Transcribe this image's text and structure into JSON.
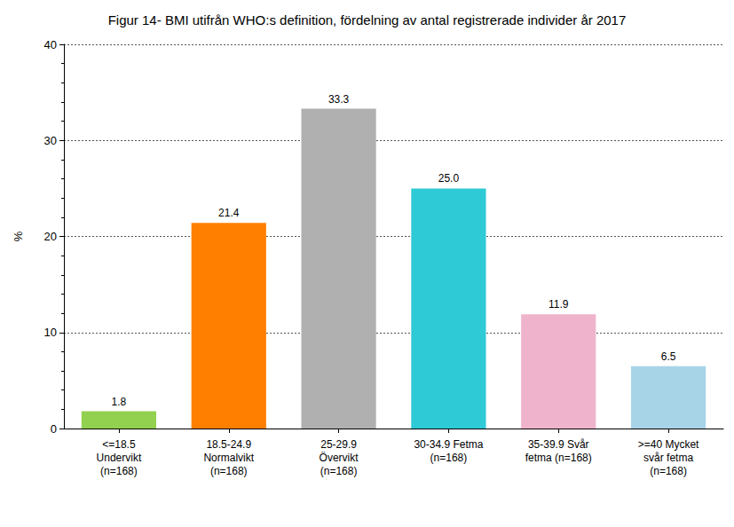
{
  "chart_data": {
    "type": "bar",
    "title": "Figur 14- BMI utifrån WHO:s definition, fördelning av antal registrerade individer år 2017",
    "ylabel": "%",
    "categories": [
      "<=18.5\nUndervikt\n(n=168)",
      "18.5-24.9\nNormalvikt\n(n=168)",
      "25-29.9\nÖvervikt\n(n=168)",
      "30-34.9 Fetma\n(n=168)",
      "35-39.9 Svår\nfetma (n=168)",
      ">=40 Mycket\nsvår fetma\n(n=168)"
    ],
    "values": [
      1.8,
      21.4,
      33.3,
      25.0,
      11.9,
      6.5
    ],
    "value_labels": [
      "1.8",
      "21.4",
      "33.3",
      "25.0",
      "11.9",
      "6.5"
    ],
    "colors": [
      "#92d050",
      "#ff7f00",
      "#b0b0b0",
      "#2ecad6",
      "#efb4cc",
      "#a8d4e8"
    ],
    "ylim": [
      0,
      40
    ],
    "yticks": [
      0,
      10,
      20,
      30,
      40
    ],
    "grid": true,
    "data_labels": true
  }
}
